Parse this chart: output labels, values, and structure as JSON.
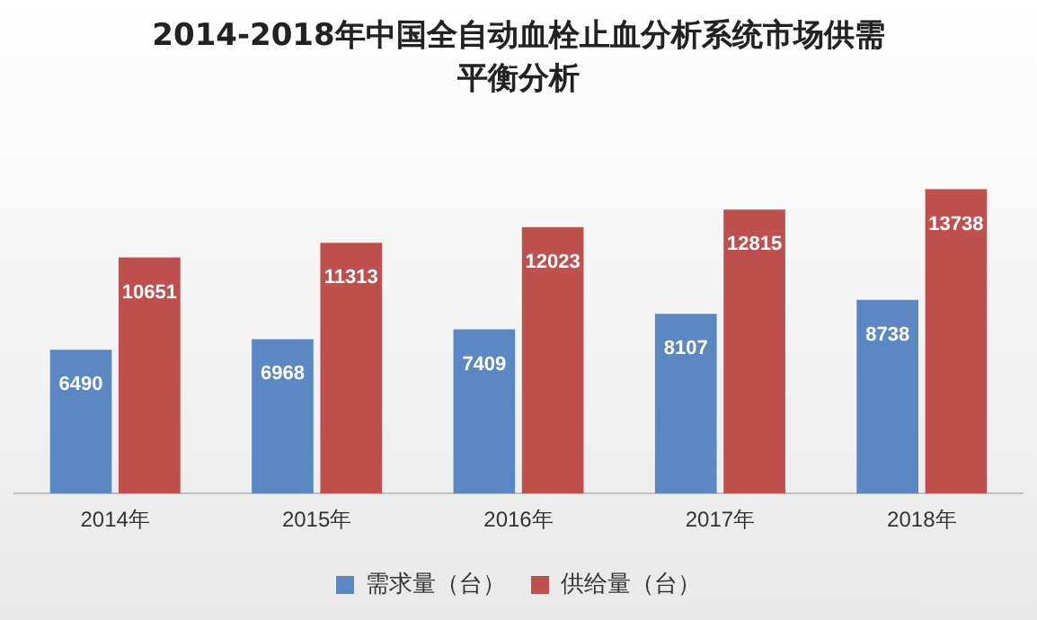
{
  "chart_data": {
    "type": "bar",
    "title": "2014-2018年中国全自动血栓止血分析系统市场供需平衡分析",
    "categories": [
      "2014年",
      "2015年",
      "2016年",
      "2017年",
      "2018年"
    ],
    "series": [
      {
        "name": "需求量（台）",
        "color": "#5b88c3",
        "values": [
          6490,
          6968,
          7409,
          8107,
          8738
        ]
      },
      {
        "name": "供给量（台）",
        "color": "#c0504d",
        "values": [
          10651,
          11313,
          12023,
          12815,
          13738
        ]
      }
    ],
    "data_labels": true,
    "legend": "bottom",
    "grid": false
  }
}
